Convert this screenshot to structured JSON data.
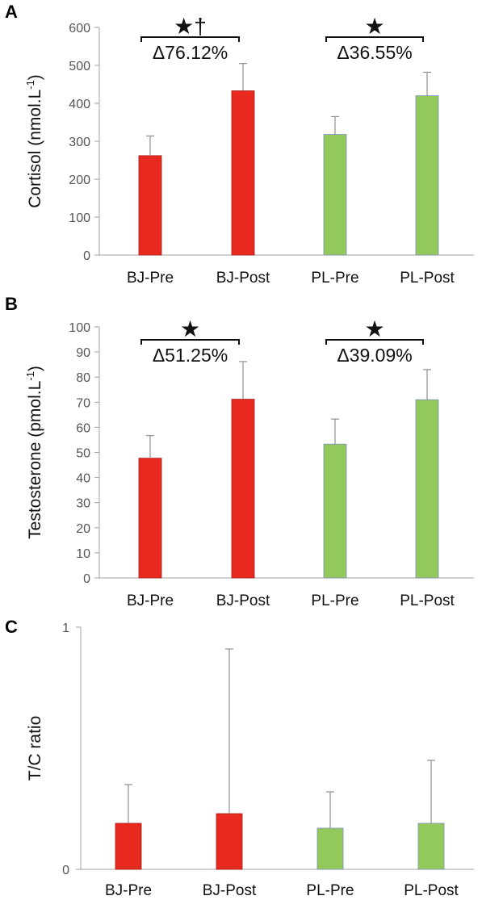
{
  "colors": {
    "bj": "#e8291f",
    "bj_edge": "#a71a14",
    "pl": "#92c95a",
    "pl_edge": "#7d8fc0",
    "error_bar": "#909090",
    "axis": "#a0a0a0"
  },
  "chart_data": [
    {
      "panel": "A",
      "type": "bar",
      "categories": [
        "BJ-Pre",
        "BJ-Post",
        "PL-Pre",
        "PL-Post"
      ],
      "values": [
        262,
        433,
        318,
        420
      ],
      "errors": [
        52,
        72,
        47,
        62
      ],
      "title": "",
      "xlabel": "",
      "ylabel": "Cortisol (nmol.L-1)",
      "ylabel_parts": {
        "main": "Cortisol (nmol.L",
        "sup": "-1",
        "end": ")"
      },
      "ylim": [
        0,
        600
      ],
      "yticks": [
        0,
        100,
        200,
        300,
        400,
        500,
        600
      ],
      "grid": false,
      "legend": "none",
      "annotations": [
        {
          "from": 0,
          "to": 1,
          "mark": "★†",
          "text": "Δ76.12%"
        },
        {
          "from": 2,
          "to": 3,
          "mark": "★",
          "text": "Δ36.55%"
        }
      ]
    },
    {
      "panel": "B",
      "type": "bar",
      "categories": [
        "BJ-Pre",
        "BJ-Post",
        "PL-Pre",
        "PL-Post"
      ],
      "values": [
        47.7,
        71.2,
        53.3,
        71.0
      ],
      "errors": [
        9,
        15,
        10,
        12
      ],
      "title": "",
      "xlabel": "",
      "ylabel": "Testosterone (pmol.L-1)",
      "ylabel_parts": {
        "main": "Testosterone (pmol.L",
        "sup": "-1",
        "end": ")"
      },
      "ylim": [
        0,
        100
      ],
      "yticks": [
        0,
        10,
        20,
        30,
        40,
        50,
        60,
        70,
        80,
        90,
        100
      ],
      "grid": false,
      "legend": "none",
      "annotations": [
        {
          "from": 0,
          "to": 1,
          "mark": "★",
          "text": "Δ51.25%"
        },
        {
          "from": 2,
          "to": 3,
          "mark": "★",
          "text": "Δ39.09%"
        }
      ]
    },
    {
      "panel": "C",
      "type": "bar",
      "categories": [
        "BJ-Pre",
        "BJ-Post",
        "PL-Pre",
        "PL-Post"
      ],
      "values": [
        0.19,
        0.23,
        0.17,
        0.19
      ],
      "errors": [
        0.16,
        0.68,
        0.15,
        0.26
      ],
      "title": "",
      "xlabel": "",
      "ylabel": "T/C ratio",
      "ylabel_parts": {
        "main": "T/C ratio",
        "sup": "",
        "end": ""
      },
      "ylim": [
        0,
        1
      ],
      "yticks": [
        0,
        1
      ],
      "grid": false,
      "legend": "none",
      "annotations": []
    }
  ]
}
